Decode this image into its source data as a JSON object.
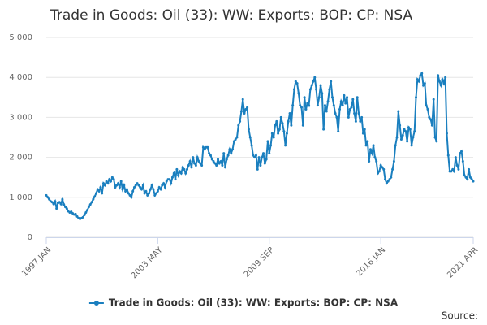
{
  "chart_data": {
    "type": "line",
    "title": "Trade in Goods: Oil (33): WW: Exports: BOP: CP: NSA",
    "source": "Source:",
    "categories": [
      "1997 JAN",
      null,
      null,
      null,
      null,
      null,
      null,
      null,
      null,
      null,
      null,
      null,
      null,
      null,
      null,
      null,
      null,
      null,
      null,
      null,
      null,
      null,
      null,
      null,
      null,
      null,
      null,
      null,
      null,
      null,
      null,
      null,
      null,
      null,
      null,
      null,
      null,
      null,
      null,
      null,
      null,
      null,
      null,
      null,
      null,
      null,
      null,
      null,
      null,
      null,
      null,
      null,
      null,
      null,
      null,
      null,
      null,
      null,
      null,
      null,
      null,
      null,
      null,
      null,
      null,
      null,
      null,
      null,
      null,
      null,
      null,
      null,
      null,
      null,
      null,
      null,
      "2003 MAY",
      null,
      null,
      null,
      null,
      null,
      null,
      null,
      null,
      null,
      null,
      null,
      null,
      null,
      null,
      null,
      null,
      null,
      null,
      null,
      null,
      null,
      null,
      null,
      null,
      null,
      null,
      null,
      null,
      null,
      null,
      null,
      null,
      null,
      null,
      null,
      null,
      null,
      null,
      null,
      null,
      null,
      null,
      null,
      null,
      null,
      null,
      null,
      null,
      null,
      null,
      null,
      null,
      null,
      null,
      null,
      null,
      null,
      null,
      null,
      null,
      null,
      null,
      null,
      null,
      null,
      null,
      null,
      null,
      null,
      null,
      null,
      null,
      null,
      null,
      null,
      "2009 SEP",
      null,
      null,
      null,
      null,
      null,
      null,
      null,
      null,
      null,
      null,
      null,
      null,
      null,
      null,
      null,
      null,
      null,
      null,
      null,
      null,
      null,
      null,
      null,
      null,
      null,
      null,
      null,
      null,
      null,
      null,
      null,
      null,
      null,
      null,
      null,
      null,
      null,
      null,
      null,
      null,
      null,
      null,
      null,
      null,
      null,
      null,
      null,
      null,
      null,
      null,
      null,
      null,
      null,
      null,
      null,
      null,
      null,
      null,
      null,
      null,
      null,
      null,
      null,
      null,
      null,
      null,
      null,
      null,
      null,
      null,
      null,
      null,
      null,
      null,
      null,
      "2016 JAN",
      null,
      null,
      null,
      null,
      null,
      null,
      null,
      null,
      null,
      null,
      null,
      null,
      null,
      null,
      null,
      null,
      null,
      null,
      null,
      null,
      null,
      null,
      null,
      null,
      null,
      null,
      null,
      null,
      null,
      null,
      null,
      null,
      null,
      null,
      null,
      null,
      null,
      null,
      null,
      null,
      null,
      null,
      null,
      null,
      null,
      null,
      null,
      null,
      null,
      null,
      null,
      null,
      null,
      null,
      null,
      null,
      null,
      null,
      null,
      null,
      null,
      null,
      "2021 APR"
    ],
    "series": [
      {
        "name": "Trade in Goods: Oil (33): WW: Exports: BOP: CP: NSA",
        "color": "#1a7fbf",
        "values": [
          1050,
          1000,
          950,
          900,
          880,
          830,
          900,
          720,
          860,
          880,
          830,
          950,
          820,
          760,
          720,
          650,
          620,
          640,
          600,
          570,
          580,
          520,
          480,
          460,
          480,
          500,
          560,
          620,
          680,
          760,
          820,
          880,
          950,
          1020,
          1100,
          1200,
          1150,
          1250,
          1100,
          1350,
          1300,
          1400,
          1350,
          1450,
          1400,
          1500,
          1450,
          1250,
          1300,
          1350,
          1250,
          1400,
          1200,
          1300,
          1150,
          1200,
          1100,
          1050,
          1000,
          1150,
          1250,
          1300,
          1350,
          1300,
          1250,
          1200,
          1300,
          1100,
          1150,
          1050,
          1100,
          1200,
          1300,
          1200,
          1050,
          1100,
          1150,
          1250,
          1200,
          1300,
          1350,
          1250,
          1400,
          1450,
          1450,
          1350,
          1500,
          1600,
          1450,
          1700,
          1550,
          1650,
          1600,
          1750,
          1700,
          1600,
          1700,
          1800,
          1900,
          1750,
          2000,
          1850,
          1800,
          2000,
          1900,
          1850,
          1800,
          2250,
          2200,
          2250,
          2250,
          2100,
          2050,
          1950,
          1900,
          1850,
          1800,
          1950,
          1850,
          1900,
          1800,
          2100,
          1750,
          1950,
          2050,
          2200,
          2100,
          2200,
          2400,
          2450,
          2500,
          2800,
          2900,
          3150,
          3450,
          3100,
          3200,
          3250,
          2700,
          2500,
          2300,
          2050,
          2000,
          2050,
          1700,
          2000,
          1800,
          2000,
          2100,
          1850,
          1950,
          2400,
          2100,
          2300,
          2600,
          2500,
          2800,
          2900,
          2600,
          2700,
          3000,
          2850,
          2650,
          2300,
          2600,
          2900,
          3100,
          2800,
          3300,
          3700,
          3900,
          3850,
          3600,
          3300,
          3250,
          2800,
          3500,
          3200,
          3350,
          3300,
          3700,
          3800,
          3900,
          4000,
          3700,
          3300,
          3500,
          3800,
          3600,
          2700,
          3300,
          3150,
          3400,
          3700,
          3900,
          3500,
          3300,
          3100,
          3000,
          2650,
          3200,
          3400,
          3300,
          3550,
          3350,
          3500,
          3000,
          3200,
          3250,
          3450,
          3100,
          2900,
          3500,
          3100,
          2900,
          3000,
          2600,
          2700,
          2300,
          2400,
          1900,
          2200,
          2100,
          2300,
          2000,
          1900,
          1600,
          1650,
          1800,
          1750,
          1700,
          1450,
          1350,
          1400,
          1450,
          1500,
          1700,
          1900,
          2300,
          2500,
          3150,
          2800,
          2450,
          2550,
          2700,
          2650,
          2400,
          2750,
          2700,
          2300,
          2500,
          2650,
          3500,
          3950,
          3900,
          4050,
          4100,
          3800,
          3850,
          3300,
          3200,
          3000,
          2950,
          2800,
          3450,
          2500,
          2400,
          4050,
          3900,
          3800,
          3950,
          3850,
          4000,
          2600,
          2050,
          1650,
          1650,
          1700,
          1650,
          2000,
          1800,
          1700,
          2100,
          2150,
          1900,
          1550,
          1500,
          1450,
          1700,
          1500,
          1450,
          1400
        ]
      }
    ],
    "ylim": [
      0,
      5000
    ],
    "yticks": [
      0,
      {
        "value": 1000,
        "label": "1 000"
      },
      {
        "value": 2000,
        "label": "2 000"
      },
      {
        "value": 3000,
        "label": "3 000"
      },
      {
        "value": 4000,
        "label": "4 000"
      },
      {
        "value": 5000,
        "label": "5 000"
      }
    ],
    "grid": true,
    "legend": "bottom"
  }
}
